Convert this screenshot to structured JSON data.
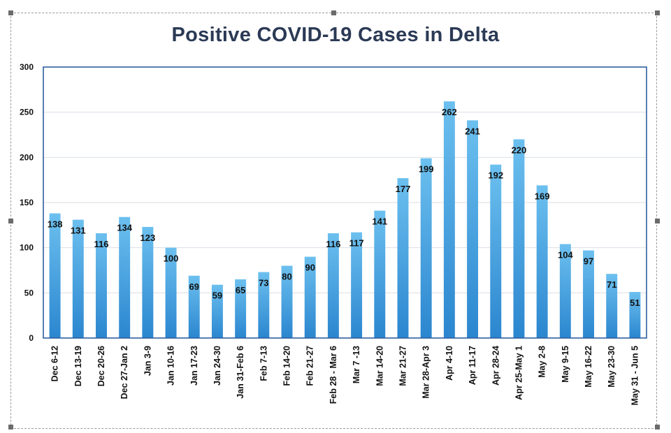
{
  "chart_data": {
    "type": "bar",
    "title": "Positive COVID-19 Cases in Delta",
    "xlabel": "",
    "ylabel": "",
    "ylim": [
      0,
      300
    ],
    "yticks": [
      0,
      50,
      100,
      150,
      200,
      250,
      300
    ],
    "grid": true,
    "legend": "none",
    "bar_color": "#3d9ad9",
    "categories": [
      "Dec 6-12",
      "Dec 13-19",
      "Dec 20-26",
      "Dec 27-Jan 2",
      "Jan 3-9",
      "Jan 10-16",
      "Jan 17-23",
      "Jan 24-30",
      "Jan 31-Feb 6",
      "Feb 7-13",
      "Feb 14-20",
      "Feb 21-27",
      "Feb 28 - Mar 6",
      "Mar 7 -13",
      "Mar 14-20",
      "Mar 21-27",
      "Mar 28-Apr 3",
      "Apr 4-10",
      "Apr 11-17",
      "Apr 28-24",
      "Apr 25-May 1",
      "May 2-8",
      "May 9-15",
      "May 16-22",
      "May 23-30",
      "May 31 - Jun 5"
    ],
    "values": [
      138,
      131,
      116,
      134,
      123,
      100,
      69,
      59,
      65,
      73,
      80,
      90,
      116,
      117,
      141,
      177,
      199,
      262,
      241,
      192,
      220,
      169,
      104,
      97,
      71,
      51
    ]
  }
}
